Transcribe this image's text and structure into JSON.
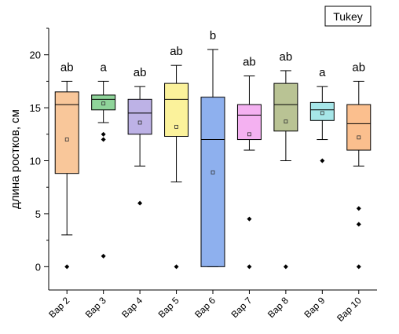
{
  "legend_box": {
    "label": "Tukey"
  },
  "chart_data": {
    "type": "box",
    "title": "",
    "xlabel": "",
    "ylabel": "длина ростков, см",
    "ylim": [
      -2.2,
      22.5
    ],
    "yticks": [
      0,
      5,
      10,
      15,
      20
    ],
    "grid": false,
    "categories": [
      "Вар 2",
      "Вар 3",
      "Вар 4",
      "Вар 5",
      "Вар 6",
      "Вар 7",
      "Вар 8",
      "Вар 9",
      "Вар 10"
    ],
    "group_labels": [
      "ab",
      "a",
      "ab",
      "ab",
      "b",
      "ab",
      "ab",
      "a",
      "ab"
    ],
    "boxes": [
      {
        "q1": 8.8,
        "median": 15.3,
        "q3": 16.5,
        "whisker_low": 3.0,
        "whisker_high": 17.5,
        "mean": 12.0,
        "outliers": [
          0
        ],
        "color": "#f9c79a"
      },
      {
        "q1": 14.8,
        "median": 15.8,
        "q3": 16.2,
        "whisker_low": 13.6,
        "whisker_high": 17.5,
        "mean": 15.4,
        "outliers": [
          1,
          12,
          12.5
        ],
        "color": "#8fd49a"
      },
      {
        "q1": 12.5,
        "median": 14.5,
        "q3": 15.8,
        "whisker_low": 9.5,
        "whisker_high": 17.0,
        "mean": 13.6,
        "outliers": [
          6
        ],
        "color": "#bdb2e6"
      },
      {
        "q1": 12.3,
        "median": 15.8,
        "q3": 17.3,
        "whisker_low": 8.0,
        "whisker_high": 19.0,
        "mean": 13.2,
        "outliers": [
          0
        ],
        "color": "#fbf29b"
      },
      {
        "q1": 0,
        "median": 12.0,
        "q3": 16.0,
        "whisker_low": 0,
        "whisker_high": 20.5,
        "mean": 8.9,
        "outliers": [],
        "color": "#8eb0ee"
      },
      {
        "q1": 12.0,
        "median": 14.3,
        "q3": 15.3,
        "whisker_low": 11.0,
        "whisker_high": 18.0,
        "mean": 12.5,
        "outliers": [
          4.5,
          0
        ],
        "color": "#f4b1f1"
      },
      {
        "q1": 12.8,
        "median": 15.3,
        "q3": 17.3,
        "whisker_low": 10.0,
        "whisker_high": 18.5,
        "mean": 13.7,
        "outliers": [
          0
        ],
        "color": "#b9c394"
      },
      {
        "q1": 13.8,
        "median": 14.8,
        "q3": 15.5,
        "whisker_low": 12.0,
        "whisker_high": 17.0,
        "mean": 14.5,
        "outliers": [
          10
        ],
        "color": "#a6e6e8"
      },
      {
        "q1": 11.0,
        "median": 13.5,
        "q3": 15.3,
        "whisker_low": 9.5,
        "whisker_high": 17.5,
        "mean": 12.2,
        "outliers": [
          5.5,
          4.0,
          0
        ],
        "color": "#fbbf8e"
      }
    ]
  }
}
